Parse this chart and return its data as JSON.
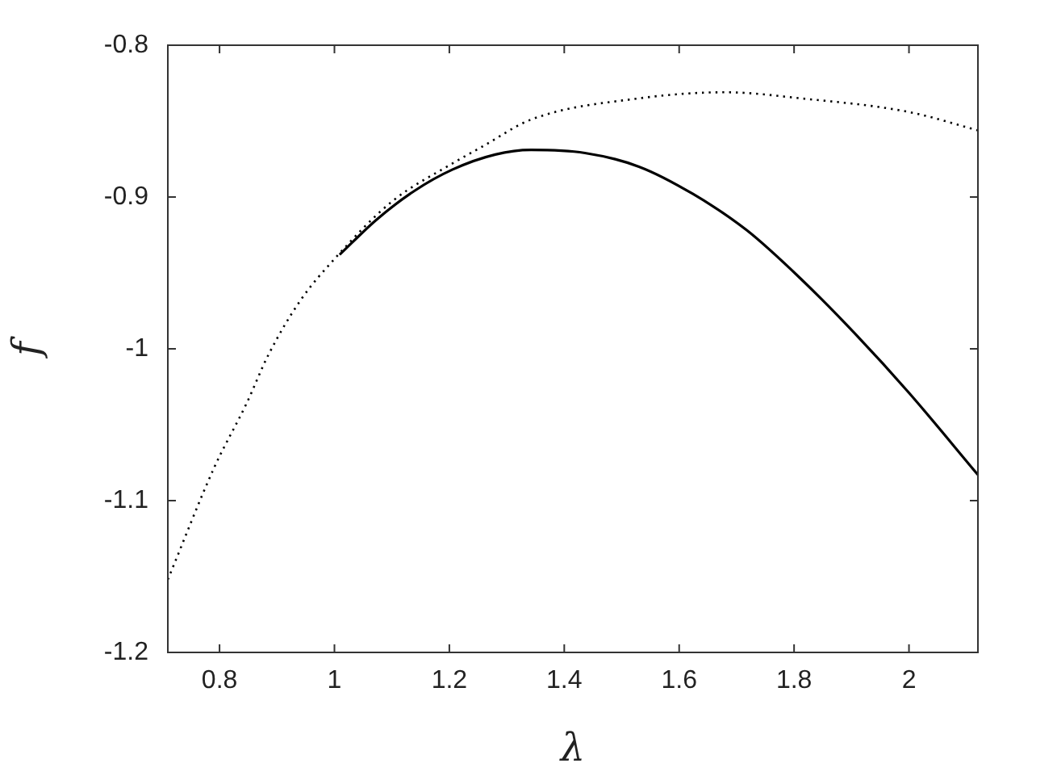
{
  "chart_data": {
    "type": "line",
    "xlabel": "λ",
    "ylabel": "f",
    "xlim": [
      0.71,
      2.12
    ],
    "xticks": [
      {
        "value": 0.8,
        "label": "0.8"
      },
      1,
      {
        "value": 1.2,
        "label": "1.2"
      },
      {
        "value": 1.4,
        "label": "1.4"
      },
      {
        "value": 1.6,
        "label": "1.6"
      },
      {
        "value": 1.8,
        "label": "1.8"
      },
      2
    ],
    "ylim": [
      -1.2,
      -0.8
    ],
    "yticks": [
      {
        "value": -1.2,
        "label": "-1.2"
      },
      {
        "value": -1.1,
        "label": "-1.1"
      },
      -1,
      {
        "value": -0.9,
        "label": "-0.9"
      },
      {
        "value": -0.8,
        "label": "-0.8"
      }
    ],
    "grid": false,
    "legend": false,
    "marker": "none",
    "series": [
      {
        "color": "#000000",
        "line_style": "dotted",
        "x": [
          0.71,
          0.791,
          0.847,
          0.885,
          0.941,
          1.002,
          1.1,
          1.205,
          1.261,
          1.342,
          1.53,
          1.68,
          1.812,
          2.0,
          2.119
        ],
        "values": [
          -1.152,
          -1.078,
          -1.036,
          -1.004,
          -0.968,
          -0.94,
          -0.903,
          -0.878,
          -0.866,
          -0.849,
          -0.835,
          -0.831,
          -0.835,
          -0.844,
          -0.856
        ]
      },
      {
        "color": "#000000",
        "line_style": "solid",
        "x": [
          1.009,
          1.073,
          1.139,
          1.205,
          1.28,
          1.342,
          1.436,
          1.53,
          1.624,
          1.718,
          1.812,
          1.906,
          2.0,
          2.12
        ],
        "values": [
          -0.938,
          -0.915,
          -0.896,
          -0.882,
          -0.872,
          -0.869,
          -0.871,
          -0.88,
          -0.898,
          -0.922,
          -0.954,
          -0.99,
          -1.029,
          -1.083
        ]
      }
    ]
  }
}
